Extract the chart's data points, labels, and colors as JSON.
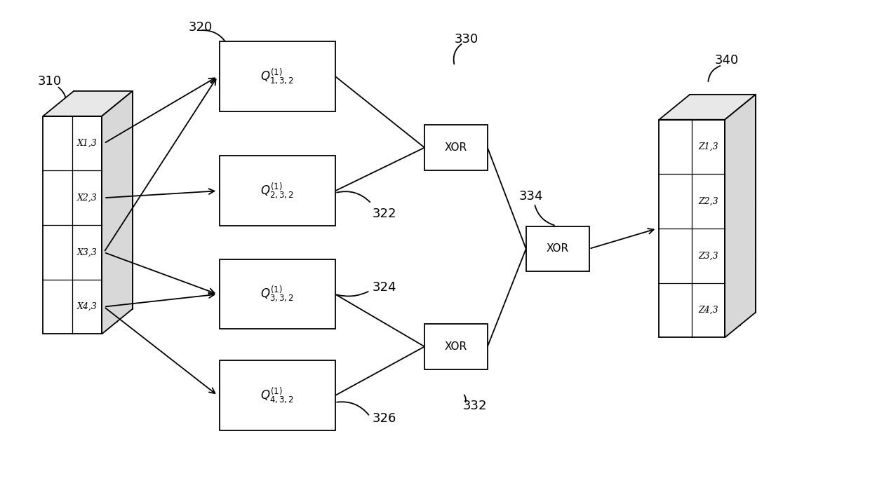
{
  "bg_color": "#ffffff",
  "lc": "#000000",
  "fc": "#ffffff",
  "tc": "#000000",
  "fig_w": 12.4,
  "fig_h": 6.89,
  "dpi": 100,
  "input_label": "310",
  "input_rows": [
    "X1,3",
    "X2,3",
    "X3,3",
    "X4,3"
  ],
  "q_labels": [
    "Q(1)1,3,2",
    "Q(1)2,3,2",
    "Q(1)3,3,2",
    "Q(1)4,3,2"
  ],
  "q_tags": [
    "320",
    "322",
    "324",
    "326"
  ],
  "xor_labels": [
    "XOR",
    "XOR",
    "XOR"
  ],
  "xor_tag_top": "330",
  "xor_tag_mid": "334",
  "xor_tag_bot": "332",
  "output_label": "340",
  "output_rows": [
    "Z1,3",
    "Z2,3",
    "Z3,3",
    "Z4,3"
  ]
}
